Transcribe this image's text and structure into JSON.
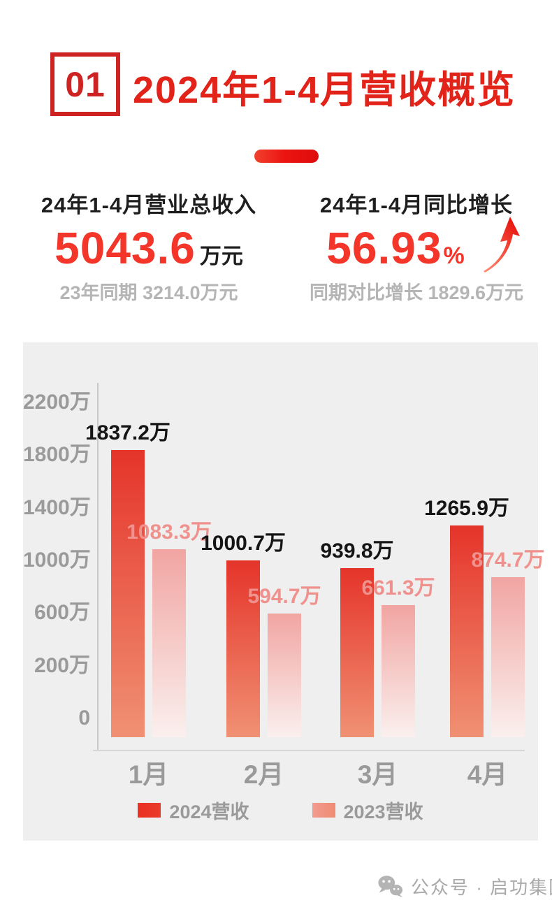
{
  "header": {
    "badge": "01",
    "title": "2024年1-4月营收概览"
  },
  "stats": {
    "left": {
      "label": "24年1-4月营业总收入",
      "value": "5043.6",
      "unit": "万元",
      "subtext": "23年同期 3214.0万元"
    },
    "right": {
      "label": "24年1-4月同比增长",
      "value": "56.93",
      "unit": "%",
      "subtext": "同期对比增长 1829.6万元",
      "arrow_icon": "trend-up-arrow"
    }
  },
  "chart_data": {
    "type": "bar",
    "categories": [
      "1月",
      "2月",
      "3月",
      "4月"
    ],
    "series": [
      {
        "name": "2024营收",
        "values": [
          1837.2,
          1000.7,
          939.8,
          1265.9
        ],
        "color_top": "#e5342a",
        "color_bottom": "#f09173",
        "label_color": "#151515",
        "swatch_colors": [
          "#e93021",
          "#ea3b2c"
        ]
      },
      {
        "name": "2023营收",
        "values": [
          1083.3,
          594.7,
          661.3,
          874.7
        ],
        "color_top": "#f1a5a2",
        "color_bottom": "#faf0ee",
        "label_color": "#ef928e",
        "swatch_colors": [
          "#f29b90",
          "#ef8b72"
        ]
      }
    ],
    "value_suffix": "万",
    "y_tick_labels": [
      "2200万",
      "1800万",
      "1400万",
      "1000万",
      "600万",
      "200万",
      "0"
    ],
    "ylim": [
      0,
      2200
    ],
    "grid": false,
    "legend_position": "bottom",
    "data_labels": true
  },
  "footer": {
    "icon": "wechat-icon",
    "text": "公众号 · 启功集团"
  },
  "colors": {
    "badge_red": "#cd2423",
    "title_red": "#e2231a",
    "number_red": "#f3352a",
    "dark_text": "#1e1e1e",
    "gray_subtext": "#b5b5b5",
    "axis_gray": "#9a9a9a",
    "panel_bg": "#f0efef",
    "pill_gradient": [
      "#f0422c",
      "#dd0c0c"
    ],
    "arrow_gradient": [
      "#ff9076",
      "#e8150e"
    ]
  }
}
